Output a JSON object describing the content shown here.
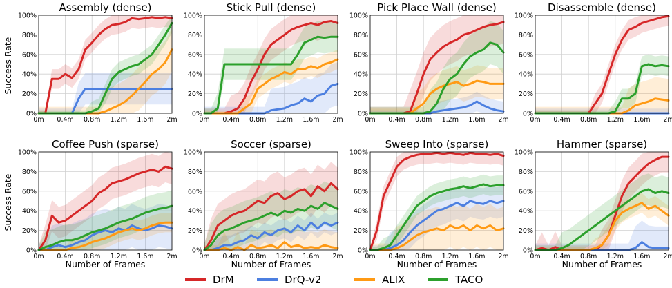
{
  "figure": {
    "ylabel": "Success Rate",
    "xlabel": "Number of Frames",
    "legend": [
      "DrM",
      "DrQ-v2",
      "ALIX",
      "TACO"
    ],
    "legend_position": "bottom-center",
    "colors": {
      "DrM": "#d62728",
      "DrQ-v2": "#4c7fe0",
      "ALIX": "#ff9a14",
      "TACO": "#2ca02c"
    }
  },
  "chart_data": [
    {
      "type": "line",
      "title": "Assembly (dense)",
      "xlim": [
        0,
        2
      ],
      "ylim": [
        0,
        100
      ],
      "grid": true,
      "x_ticks": [
        "0m",
        "0.4m",
        "0.8m",
        "1.2m",
        "1.6m",
        "2m"
      ],
      "y_ticks": [
        "0%",
        "20%",
        "40%",
        "60%",
        "80%",
        "100%"
      ],
      "x": [
        0,
        0.1,
        0.2,
        0.3,
        0.4,
        0.5,
        0.6,
        0.7,
        0.8,
        0.9,
        1.0,
        1.1,
        1.2,
        1.3,
        1.4,
        1.5,
        1.6,
        1.7,
        1.8,
        1.9,
        2.0
      ],
      "series": [
        {
          "name": "DrM",
          "values": [
            0,
            0,
            35,
            35,
            40,
            36,
            45,
            65,
            72,
            80,
            86,
            90,
            91,
            93,
            97,
            96,
            97,
            98,
            97,
            98,
            97
          ]
        },
        {
          "name": "DrQ-v2",
          "values": [
            0,
            0,
            0,
            0,
            0,
            0,
            15,
            25,
            25,
            25,
            25,
            25,
            25,
            25,
            25,
            25,
            25,
            25,
            25,
            25,
            25
          ]
        },
        {
          "name": "ALIX",
          "values": [
            0,
            0,
            0,
            0,
            0,
            0,
            0,
            0,
            0,
            0,
            2,
            5,
            8,
            12,
            18,
            25,
            32,
            40,
            45,
            52,
            65
          ]
        },
        {
          "name": "TACO",
          "values": [
            0,
            0,
            0,
            0,
            0,
            0,
            0,
            0,
            2,
            5,
            20,
            35,
            42,
            45,
            48,
            50,
            55,
            60,
            70,
            80,
            92
          ]
        }
      ]
    },
    {
      "type": "line",
      "title": "Stick Pull (dense)",
      "xlim": [
        0,
        2
      ],
      "ylim": [
        0,
        100
      ],
      "grid": true,
      "x_ticks": [
        "0m",
        "0.4m",
        "0.8m",
        "1.2m",
        "1.6m",
        "2m"
      ],
      "y_ticks": [
        "0%",
        "20%",
        "40%",
        "60%",
        "80%",
        "100%"
      ],
      "x": [
        0,
        0.1,
        0.2,
        0.3,
        0.4,
        0.5,
        0.6,
        0.7,
        0.8,
        0.9,
        1.0,
        1.1,
        1.2,
        1.3,
        1.4,
        1.5,
        1.6,
        1.7,
        1.8,
        1.9,
        2.0
      ],
      "series": [
        {
          "name": "DrM",
          "values": [
            0,
            0,
            0,
            0,
            2,
            5,
            15,
            32,
            45,
            60,
            70,
            75,
            80,
            85,
            88,
            90,
            92,
            90,
            93,
            94,
            92
          ]
        },
        {
          "name": "DrQ-v2",
          "values": [
            0,
            0,
            0,
            0,
            0,
            0,
            0,
            0,
            0,
            0,
            3,
            4,
            5,
            8,
            10,
            15,
            12,
            18,
            20,
            28,
            30
          ]
        },
        {
          "name": "ALIX",
          "values": [
            0,
            0,
            0,
            0,
            0,
            0,
            5,
            10,
            25,
            30,
            35,
            38,
            42,
            40,
            45,
            45,
            48,
            46,
            50,
            52,
            55
          ]
        },
        {
          "name": "TACO",
          "values": [
            0,
            0,
            5,
            50,
            50,
            50,
            50,
            50,
            50,
            50,
            50,
            50,
            50,
            50,
            60,
            72,
            75,
            78,
            77,
            78,
            78
          ]
        }
      ]
    },
    {
      "type": "line",
      "title": "Pick Place Wall (dense)",
      "xlim": [
        0,
        2
      ],
      "ylim": [
        0,
        100
      ],
      "grid": true,
      "x_ticks": [
        "0m",
        "0.4m",
        "0.8m",
        "1.2m",
        "1.6m",
        "2m"
      ],
      "y_ticks": [
        "0%",
        "20%",
        "40%",
        "60%",
        "80%",
        "100%"
      ],
      "x": [
        0,
        0.1,
        0.2,
        0.3,
        0.4,
        0.5,
        0.6,
        0.7,
        0.8,
        0.9,
        1.0,
        1.1,
        1.2,
        1.3,
        1.4,
        1.5,
        1.6,
        1.7,
        1.8,
        1.9,
        2.0
      ],
      "series": [
        {
          "name": "DrM",
          "values": [
            0,
            0,
            0,
            0,
            0,
            0,
            2,
            20,
            40,
            55,
            62,
            68,
            72,
            75,
            80,
            82,
            85,
            88,
            90,
            91,
            93
          ]
        },
        {
          "name": "DrQ-v2",
          "values": [
            0,
            0,
            0,
            0,
            0,
            0,
            0,
            0,
            0,
            0,
            2,
            3,
            4,
            5,
            6,
            8,
            12,
            8,
            5,
            3,
            2
          ]
        },
        {
          "name": "ALIX",
          "values": [
            0,
            0,
            0,
            0,
            0,
            0,
            0,
            5,
            10,
            20,
            25,
            28,
            30,
            32,
            28,
            30,
            33,
            32,
            30,
            30,
            30
          ]
        },
        {
          "name": "TACO",
          "values": [
            0,
            0,
            0,
            0,
            0,
            0,
            0,
            0,
            0,
            2,
            10,
            25,
            35,
            40,
            50,
            58,
            62,
            65,
            72,
            70,
            62
          ]
        }
      ]
    },
    {
      "type": "line",
      "title": "Disassemble (dense)",
      "xlim": [
        0,
        2
      ],
      "ylim": [
        0,
        100
      ],
      "grid": true,
      "x_ticks": [
        "0m",
        "0.4m",
        "0.8m",
        "1.2m",
        "1.6m",
        "2m"
      ],
      "y_ticks": [
        "0%",
        "20%",
        "40%",
        "60%",
        "80%",
        "100%"
      ],
      "x": [
        0,
        0.1,
        0.2,
        0.3,
        0.4,
        0.5,
        0.6,
        0.7,
        0.8,
        0.9,
        1.0,
        1.1,
        1.2,
        1.3,
        1.4,
        1.5,
        1.6,
        1.7,
        1.8,
        1.9,
        2.0
      ],
      "series": [
        {
          "name": "DrM",
          "values": [
            0,
            0,
            0,
            0,
            0,
            0,
            0,
            0,
            0,
            10,
            20,
            40,
            60,
            75,
            85,
            88,
            92,
            94,
            96,
            98,
            99
          ]
        },
        {
          "name": "DrQ-v2",
          "values": [
            0,
            0,
            0,
            0,
            0,
            0,
            0,
            0,
            0,
            0,
            0,
            0,
            0,
            0,
            0,
            0,
            0,
            0,
            0,
            0,
            0
          ]
        },
        {
          "name": "ALIX",
          "values": [
            0,
            0,
            0,
            0,
            0,
            0,
            0,
            0,
            0,
            0,
            0,
            0,
            0,
            0,
            3,
            8,
            10,
            12,
            15,
            14,
            13
          ]
        },
        {
          "name": "TACO",
          "values": [
            0,
            0,
            0,
            0,
            0,
            0,
            0,
            0,
            0,
            0,
            0,
            0,
            2,
            15,
            15,
            20,
            48,
            50,
            48,
            49,
            48
          ]
        }
      ]
    },
    {
      "type": "line",
      "title": "Coffee Push (sparse)",
      "xlim": [
        0,
        2
      ],
      "ylim": [
        0,
        100
      ],
      "grid": true,
      "x_ticks": [
        "0m",
        "0.4m",
        "0.8m",
        "1.2m",
        "1.6m",
        "2m"
      ],
      "y_ticks": [
        "0%",
        "20%",
        "40%",
        "60%",
        "80%",
        "100%"
      ],
      "x": [
        0,
        0.1,
        0.2,
        0.3,
        0.4,
        0.5,
        0.6,
        0.7,
        0.8,
        0.9,
        1.0,
        1.1,
        1.2,
        1.3,
        1.4,
        1.5,
        1.6,
        1.7,
        1.8,
        1.9,
        2.0
      ],
      "series": [
        {
          "name": "DrM",
          "values": [
            0,
            10,
            35,
            28,
            30,
            35,
            40,
            45,
            50,
            58,
            62,
            68,
            70,
            72,
            75,
            78,
            80,
            82,
            80,
            85,
            83
          ]
        },
        {
          "name": "DrQ-v2",
          "values": [
            0,
            0,
            3,
            5,
            3,
            5,
            8,
            10,
            15,
            18,
            20,
            18,
            22,
            20,
            25,
            22,
            20,
            22,
            25,
            24,
            22
          ]
        },
        {
          "name": "ALIX",
          "values": [
            0,
            0,
            0,
            0,
            0,
            2,
            3,
            5,
            8,
            10,
            12,
            15,
            18,
            20,
            22,
            20,
            22,
            25,
            27,
            28,
            28
          ]
        },
        {
          "name": "TACO",
          "values": [
            0,
            3,
            5,
            8,
            10,
            10,
            12,
            15,
            18,
            20,
            22,
            25,
            28,
            30,
            32,
            35,
            38,
            40,
            42,
            43,
            45
          ]
        }
      ]
    },
    {
      "type": "line",
      "title": "Soccer (sparse)",
      "xlim": [
        0,
        2
      ],
      "ylim": [
        0,
        100
      ],
      "grid": true,
      "x_ticks": [
        "0m",
        "0.4m",
        "0.8m",
        "1.2m",
        "1.6m",
        "2m"
      ],
      "y_ticks": [
        "0%",
        "20%",
        "40%",
        "60%",
        "80%",
        "100%"
      ],
      "x": [
        0,
        0.1,
        0.2,
        0.3,
        0.4,
        0.5,
        0.6,
        0.7,
        0.8,
        0.9,
        1.0,
        1.1,
        1.2,
        1.3,
        1.4,
        1.5,
        1.6,
        1.7,
        1.8,
        1.9,
        2.0
      ],
      "series": [
        {
          "name": "DrM",
          "values": [
            0,
            10,
            25,
            30,
            35,
            38,
            40,
            45,
            50,
            48,
            55,
            58,
            52,
            55,
            60,
            62,
            55,
            65,
            60,
            68,
            62
          ]
        },
        {
          "name": "DrQ-v2",
          "values": [
            0,
            0,
            2,
            5,
            5,
            8,
            10,
            15,
            12,
            18,
            15,
            20,
            22,
            18,
            25,
            20,
            28,
            22,
            28,
            25,
            28
          ]
        },
        {
          "name": "ALIX",
          "values": [
            0,
            0,
            0,
            2,
            0,
            3,
            0,
            5,
            2,
            3,
            5,
            2,
            8,
            3,
            5,
            2,
            3,
            2,
            5,
            3,
            2
          ]
        },
        {
          "name": "TACO",
          "values": [
            0,
            5,
            15,
            20,
            22,
            25,
            28,
            30,
            32,
            35,
            38,
            35,
            40,
            38,
            42,
            40,
            45,
            42,
            48,
            45,
            42
          ]
        }
      ]
    },
    {
      "type": "line",
      "title": "Sweep Into (sparse)",
      "xlim": [
        0,
        2
      ],
      "ylim": [
        0,
        100
      ],
      "grid": true,
      "x_ticks": [
        "0m",
        "0.4m",
        "0.8m",
        "1.2m",
        "1.6m",
        "2m"
      ],
      "y_ticks": [
        "0%",
        "20%",
        "40%",
        "60%",
        "80%",
        "100%"
      ],
      "x": [
        0,
        0.1,
        0.2,
        0.3,
        0.4,
        0.5,
        0.6,
        0.7,
        0.8,
        0.9,
        1.0,
        1.1,
        1.2,
        1.3,
        1.4,
        1.5,
        1.6,
        1.7,
        1.8,
        1.9,
        2.0
      ],
      "series": [
        {
          "name": "DrM",
          "values": [
            0,
            20,
            55,
            70,
            85,
            92,
            95,
            97,
            98,
            98,
            99,
            98,
            99,
            98,
            97,
            99,
            98,
            98,
            97,
            98,
            96
          ]
        },
        {
          "name": "DrQ-v2",
          "values": [
            0,
            0,
            0,
            2,
            5,
            10,
            18,
            25,
            30,
            35,
            40,
            42,
            45,
            48,
            45,
            50,
            48,
            47,
            50,
            48,
            50
          ]
        },
        {
          "name": "ALIX",
          "values": [
            0,
            0,
            0,
            0,
            2,
            5,
            10,
            15,
            18,
            20,
            22,
            20,
            25,
            22,
            25,
            20,
            25,
            22,
            25,
            20,
            22
          ]
        },
        {
          "name": "TACO",
          "values": [
            0,
            0,
            2,
            5,
            15,
            25,
            35,
            45,
            50,
            55,
            58,
            60,
            62,
            63,
            65,
            63,
            65,
            67,
            65,
            66,
            66
          ]
        }
      ]
    },
    {
      "type": "line",
      "title": "Hammer (sparse)",
      "xlim": [
        0,
        2
      ],
      "ylim": [
        0,
        100
      ],
      "grid": true,
      "x_ticks": [
        "0m",
        "0.4m",
        "0.8m",
        "1.2m",
        "1.6m",
        "2m"
      ],
      "y_ticks": [
        "0%",
        "20%",
        "40%",
        "60%",
        "80%",
        "100%"
      ],
      "x": [
        0,
        0.1,
        0.2,
        0.3,
        0.4,
        0.5,
        0.6,
        0.7,
        0.8,
        0.9,
        1.0,
        1.1,
        1.2,
        1.3,
        1.4,
        1.5,
        1.6,
        1.7,
        1.8,
        1.9,
        2.0
      ],
      "series": [
        {
          "name": "DrM",
          "values": [
            0,
            2,
            0,
            3,
            0,
            0,
            0,
            0,
            0,
            0,
            5,
            15,
            35,
            55,
            68,
            75,
            82,
            88,
            92,
            95,
            95
          ]
        },
        {
          "name": "DrQ-v2",
          "values": [
            0,
            0,
            0,
            0,
            0,
            0,
            0,
            0,
            0,
            0,
            0,
            0,
            0,
            0,
            0,
            2,
            8,
            3,
            2,
            2,
            2
          ]
        },
        {
          "name": "ALIX",
          "values": [
            0,
            0,
            0,
            0,
            0,
            0,
            0,
            0,
            0,
            2,
            5,
            15,
            30,
            38,
            42,
            45,
            48,
            42,
            45,
            40,
            35
          ]
        },
        {
          "name": "TACO",
          "values": [
            0,
            0,
            0,
            0,
            2,
            5,
            10,
            15,
            20,
            25,
            30,
            35,
            40,
            45,
            50,
            55,
            60,
            62,
            58,
            60,
            58
          ]
        }
      ]
    }
  ]
}
